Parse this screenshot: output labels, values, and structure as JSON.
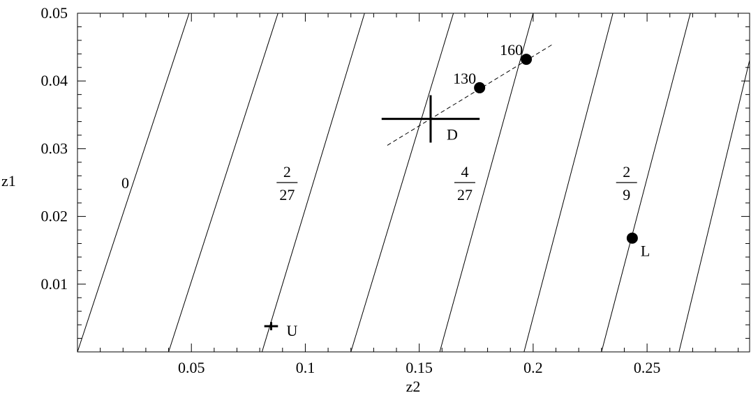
{
  "chart_data": {
    "type": "line",
    "xlabel": "z2",
    "ylabel": "z1",
    "xlim": [
      0,
      0.295
    ],
    "ylim": [
      0,
      0.05
    ],
    "x_ticks": [
      "0.05",
      "0.1",
      "0.15",
      "0.2",
      "0.25"
    ],
    "x_tick_values": [
      0.05,
      0.1,
      0.15,
      0.2,
      0.25
    ],
    "y_ticks": [
      "0.01",
      "0.02",
      "0.03",
      "0.04",
      "0.05"
    ],
    "y_tick_values": [
      0.01,
      0.02,
      0.03,
      0.04,
      0.05
    ],
    "grid": false,
    "contour_lines": [
      {
        "bottom_z2": 0.0,
        "top_z2": 0.049
      },
      {
        "bottom_z2": 0.04,
        "top_z2": 0.088
      },
      {
        "bottom_z2": 0.081,
        "top_z2": 0.126
      },
      {
        "bottom_z2": 0.12,
        "top_z2": 0.165
      },
      {
        "bottom_z2": 0.159,
        "top_z2": 0.2
      },
      {
        "bottom_z2": 0.196,
        "top_z2": 0.235
      },
      {
        "bottom_z2": 0.23,
        "top_z2": 0.269
      },
      {
        "bottom_z2": 0.264,
        "top_z2": 0.3
      }
    ],
    "contour_labels": [
      {
        "kind": "plain",
        "text": "0",
        "z2": 0.021,
        "z1": 0.025
      },
      {
        "kind": "fraction",
        "numerator": "2",
        "denominator": "27",
        "z2": 0.092,
        "z1": 0.025
      },
      {
        "kind": "fraction",
        "numerator": "4",
        "denominator": "27",
        "z2": 0.17,
        "z1": 0.025
      },
      {
        "kind": "fraction",
        "numerator": "2",
        "denominator": "9",
        "z2": 0.241,
        "z1": 0.025
      }
    ],
    "dashed_line": {
      "x": [
        0.136,
        0.209
      ],
      "y": [
        0.0305,
        0.0455
      ]
    },
    "points": [
      {
        "label": "130",
        "z2": 0.1765,
        "z1": 0.039,
        "label_side": "upper-left"
      },
      {
        "label": "160",
        "z2": 0.197,
        "z1": 0.0432,
        "label_side": "upper-left"
      },
      {
        "label": "L",
        "z2": 0.2435,
        "z1": 0.0168,
        "label_side": "lower-right"
      }
    ],
    "error_crosses": [
      {
        "label": "D",
        "z2": 0.155,
        "z1": 0.0344,
        "z2_err": 0.0215,
        "z1_err": 0.0035,
        "thickness": "thick"
      },
      {
        "label": "U",
        "z2": 0.085,
        "z1": 0.0038,
        "z2_err": 0.003,
        "z1_err": 0.0006,
        "thickness": "thick"
      }
    ]
  }
}
